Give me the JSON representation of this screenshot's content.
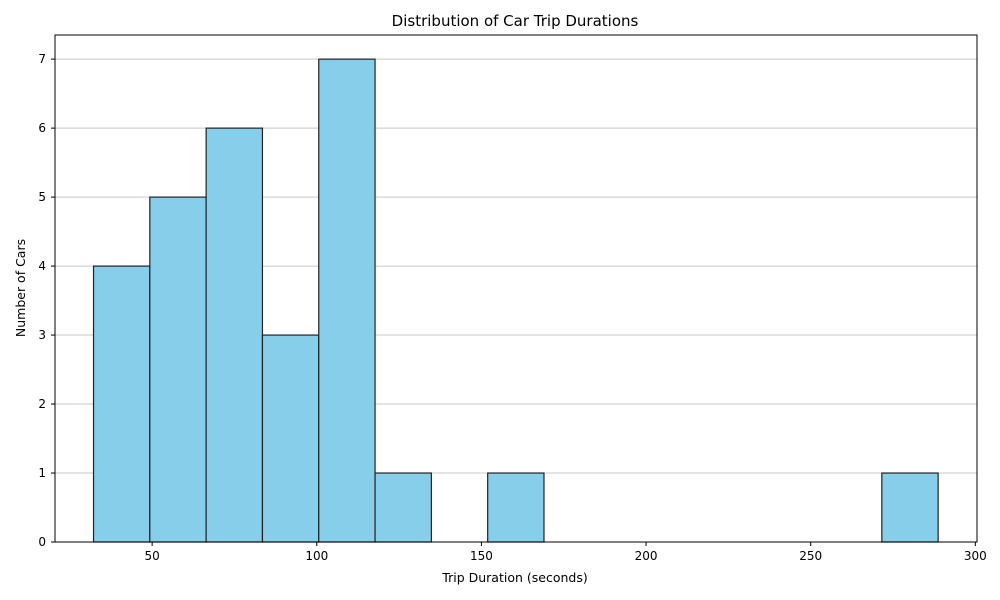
{
  "chart_data": {
    "type": "bar",
    "title": "Distribution of Car Trip Durations",
    "xlabel": "Trip Duration (seconds)",
    "ylabel": "Number of Cars",
    "bins": [
      [
        32.2,
        49.3
      ],
      [
        49.3,
        66.4
      ],
      [
        66.4,
        83.5
      ],
      [
        83.5,
        100.6
      ],
      [
        100.6,
        117.7
      ],
      [
        117.7,
        134.8
      ],
      [
        134.8,
        151.9
      ],
      [
        151.9,
        169.0
      ],
      [
        169.0,
        186.1
      ],
      [
        186.1,
        203.2
      ],
      [
        203.2,
        220.3
      ],
      [
        220.3,
        237.4
      ],
      [
        237.4,
        254.5
      ],
      [
        254.5,
        271.6
      ],
      [
        271.6,
        288.7
      ]
    ],
    "values": [
      4,
      5,
      6,
      3,
      7,
      1,
      0,
      1,
      0,
      0,
      0,
      0,
      0,
      0,
      1
    ],
    "xlim": [
      20.5,
      300.5
    ],
    "ylim": [
      0,
      7.35
    ],
    "xticks": [
      50,
      100,
      150,
      200,
      250,
      300
    ],
    "yticks": [
      0,
      1,
      2,
      3,
      4,
      5,
      6,
      7
    ],
    "grid": "y-axis",
    "bar_color": "#87ceeb",
    "edge_color": "#222222"
  }
}
